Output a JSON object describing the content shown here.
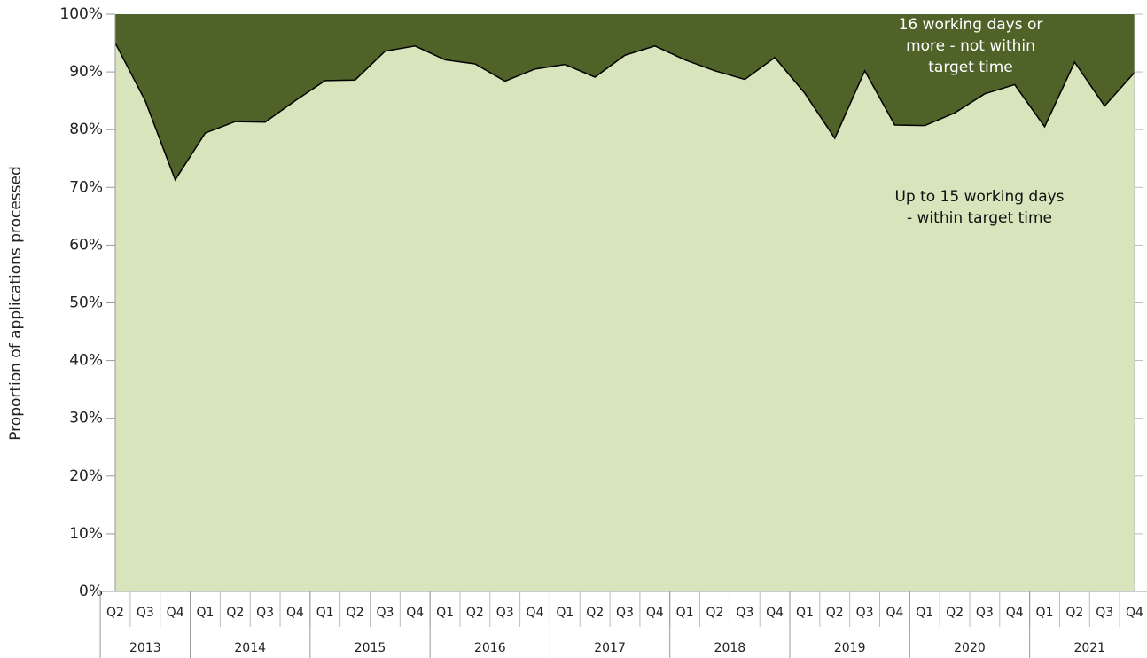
{
  "chart_data": {
    "type": "stacked_area",
    "y_axis_label": "Proportion of applications processed",
    "categories": [
      "Q2",
      "Q3",
      "Q4",
      "Q1",
      "Q2",
      "Q3",
      "Q4",
      "Q1",
      "Q2",
      "Q3",
      "Q4",
      "Q1",
      "Q2",
      "Q3",
      "Q4",
      "Q1",
      "Q2",
      "Q3",
      "Q4",
      "Q1",
      "Q2",
      "Q3",
      "Q4",
      "Q1",
      "Q2",
      "Q3",
      "Q4",
      "Q1",
      "Q2",
      "Q3",
      "Q4",
      "Q1",
      "Q2",
      "Q3",
      "Q4"
    ],
    "year_groups": [
      "2013",
      "2014",
      "2015",
      "2016",
      "2017",
      "2018",
      "2019",
      "2020",
      "2021"
    ],
    "series": [
      {
        "name": "Up to 15 working days - within target time",
        "color": "#d8e4bc",
        "values": [
          95,
          85,
          71.3,
          79.4,
          81.4,
          81.3,
          85,
          88.5,
          88.6,
          93.6,
          94.5,
          92.1,
          91.4,
          88.4,
          90.5,
          91.3,
          89.1,
          92.9,
          94.5,
          92.1,
          90.2,
          88.7,
          92.5,
          86.3,
          78.5,
          90.2,
          80.8,
          80.7,
          82.9,
          86.2,
          87.8,
          80.5,
          91.7,
          84.1,
          89.9
        ]
      },
      {
        "name": "16 working days or more - not within target time",
        "color": "#4f6228",
        "values": [
          5,
          15,
          28.7,
          20.6,
          18.6,
          18.7,
          15,
          11.5,
          11.4,
          6.4,
          5.5,
          7.9,
          8.6,
          11.6,
          9.5,
          8.7,
          10.9,
          7.1,
          5.5,
          7.9,
          9.8,
          11.3,
          7.5,
          13.7,
          21.5,
          9.8,
          19.2,
          19.3,
          17.1,
          13.8,
          12.2,
          19.5,
          8.3,
          15.9,
          10.1
        ]
      }
    ],
    "ylim": [
      0,
      100
    ],
    "yticks": [
      {
        "value": 0,
        "label": "0%"
      },
      {
        "value": 10,
        "label": "10%"
      },
      {
        "value": 20,
        "label": "20%"
      },
      {
        "value": 30,
        "label": "30%"
      },
      {
        "value": 40,
        "label": "40%"
      },
      {
        "value": 50,
        "label": "50%"
      },
      {
        "value": 60,
        "label": "60%"
      },
      {
        "value": 70,
        "label": "70%"
      },
      {
        "value": 80,
        "label": "80%"
      },
      {
        "value": 90,
        "label": "90%"
      },
      {
        "value": 100,
        "label": "100%"
      }
    ]
  }
}
